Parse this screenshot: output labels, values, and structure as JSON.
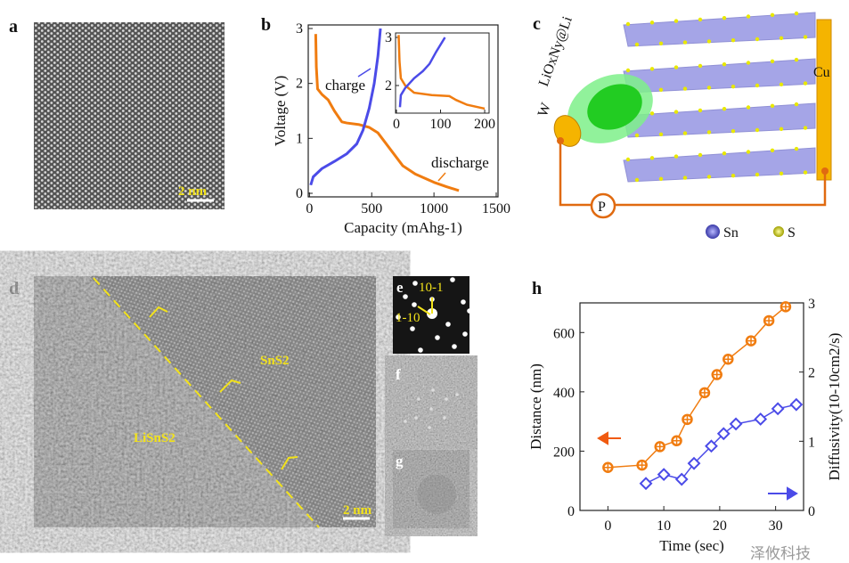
{
  "panels": {
    "a": {
      "label": "a",
      "scale_bar": "2 nm"
    },
    "b": {
      "label": "b"
    },
    "c": {
      "label": "c",
      "labels": {
        "coating": "LiOxNy@Li",
        "tip": "W",
        "collector": "Cu",
        "bias": "P"
      },
      "legend": [
        "Sn",
        "S"
      ]
    },
    "d": {
      "label": "d",
      "regions": [
        "SnS2",
        "LiSnS2"
      ],
      "scale_bar": "2 nm"
    },
    "e": {
      "label": "e",
      "spots": [
        "10-1",
        "1-10"
      ]
    },
    "f": {
      "label": "f"
    },
    "g": {
      "label": "g"
    },
    "h": {
      "label": "h"
    }
  },
  "watermark": "泽攸科技",
  "colors": {
    "orange": "#f07c10",
    "blue": "#4b4be8",
    "yellow": "#f2e21a",
    "copper": "#f5b400"
  },
  "chart_data": [
    {
      "type": "line",
      "panel": "b",
      "xlabel": "Capacity (mAhg-1)",
      "ylabel": "Voltage (V)",
      "xlim": [
        0,
        1500
      ],
      "ylim": [
        0,
        3
      ],
      "xticks": [
        "0",
        "500",
        "1000",
        "1500"
      ],
      "yticks": [
        "0",
        "1",
        "2",
        "3"
      ],
      "annotations": [
        "charge",
        "discharge"
      ],
      "series": [
        {
          "name": "discharge",
          "color": "#f07c10",
          "x": [
            50,
            55,
            65,
            100,
            150,
            200,
            260,
            300,
            400,
            480,
            550,
            650,
            750,
            850,
            1000,
            1100,
            1200
          ],
          "y": [
            2.9,
            2.3,
            1.9,
            1.8,
            1.7,
            1.5,
            1.3,
            1.28,
            1.25,
            1.2,
            1.1,
            0.8,
            0.5,
            0.35,
            0.2,
            0.12,
            0.05
          ]
        },
        {
          "name": "charge",
          "color": "#4b4be8",
          "x": [
            10,
            30,
            100,
            200,
            300,
            380,
            430,
            480,
            520,
            550,
            570
          ],
          "y": [
            0.15,
            0.3,
            0.45,
            0.58,
            0.72,
            0.9,
            1.15,
            1.55,
            2.0,
            2.5,
            3.0
          ]
        }
      ],
      "inset": {
        "xlim": [
          -2,
          210
        ],
        "ylim": [
          1.45,
          3.1
        ],
        "xticks": [
          "0",
          "100",
          "200"
        ],
        "yticks": [
          "2",
          "3"
        ],
        "series": [
          {
            "color": "#f07c10",
            "x": [
              5,
              7,
              10,
              20,
              40,
              80,
              120,
              135,
              160,
              200
            ],
            "y": [
              3.05,
              2.5,
              2.15,
              2.0,
              1.85,
              1.8,
              1.78,
              1.7,
              1.6,
              1.52
            ]
          },
          {
            "color": "#4b4be8",
            "x": [
              8,
              10,
              20,
              40,
              60,
              75,
              90,
              110
            ],
            "y": [
              1.55,
              1.8,
              1.95,
              2.15,
              2.3,
              2.45,
              2.7,
              3.0
            ]
          }
        ]
      }
    },
    {
      "type": "line",
      "panel": "h",
      "xlabel": "Time (sec)",
      "ylabel": "Distance (nm)",
      "y2label": "Diffusivity(10-10cm2/s)",
      "xlim": [
        -5,
        35
      ],
      "ylim": [
        0,
        700
      ],
      "y2lim": [
        0,
        3
      ],
      "xticks": [
        "0",
        "10",
        "20",
        "30"
      ],
      "yticks": [
        "0",
        "200",
        "400",
        "600"
      ],
      "y2ticks": [
        "0",
        "1",
        "2",
        "3"
      ],
      "series": [
        {
          "axis": "left",
          "marker": "circle-cross",
          "color": "#f07c10",
          "x": [
            0,
            6.1,
            9.3,
            12.3,
            14.2,
            17.3,
            19.5,
            21.5,
            25.6,
            28.8,
            31.8
          ],
          "y": [
            145,
            153,
            215,
            235,
            307,
            397,
            458,
            510,
            572,
            640,
            687
          ]
        },
        {
          "axis": "right",
          "marker": "diamond",
          "color": "#4b4be8",
          "x": [
            6.8,
            10,
            13.2,
            15.4,
            18.5,
            20.7,
            22.9,
            27.3,
            30.4,
            33.7
          ],
          "y": [
            0.39,
            0.52,
            0.45,
            0.68,
            0.93,
            1.11,
            1.25,
            1.32,
            1.47,
            1.53
          ]
        }
      ]
    }
  ]
}
